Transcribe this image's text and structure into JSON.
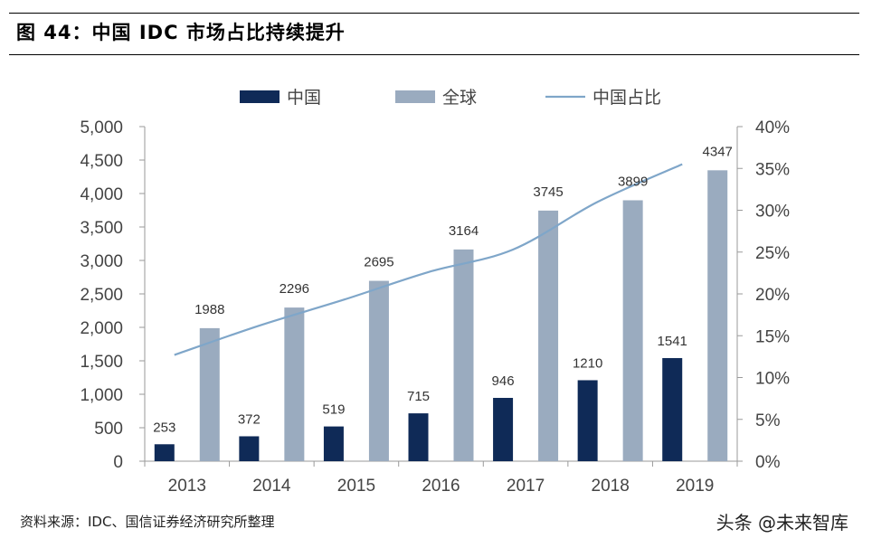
{
  "header": {
    "title": "图 44：中国 IDC 市场占比持续提升"
  },
  "footer": {
    "source": "资料来源：IDC、国信证券经济研究所整理",
    "watermark": "头条 @未来智库"
  },
  "colors": {
    "china": "#0f2a57",
    "global": "#9aabbf",
    "share": "#7fa6c9"
  },
  "chart_data": {
    "type": "bar",
    "categories": [
      "2013",
      "2014",
      "2015",
      "2016",
      "2017",
      "2018",
      "2019"
    ],
    "series": [
      {
        "name": "中国",
        "type": "bar",
        "axis": "left",
        "values": [
          253,
          372,
          519,
          715,
          946,
          1210,
          1541
        ]
      },
      {
        "name": "全球",
        "type": "bar",
        "axis": "left",
        "values": [
          1988,
          2296,
          2695,
          3164,
          3745,
          3899,
          4347
        ]
      },
      {
        "name": "中国占比",
        "type": "line",
        "axis": "right",
        "values": [
          12.7,
          16.2,
          19.3,
          22.6,
          25.3,
          31.0,
          35.5
        ]
      }
    ],
    "ylim": [
      0,
      5000
    ],
    "yticks": [
      "0",
      "500",
      "1,000",
      "1,500",
      "2,000",
      "2,500",
      "3,000",
      "3,500",
      "4,000",
      "4,500",
      "5,000"
    ],
    "y2lim": [
      0,
      40
    ],
    "y2ticks": [
      "0%",
      "5%",
      "10%",
      "15%",
      "20%",
      "25%",
      "30%",
      "35%",
      "40%"
    ],
    "legend": "top",
    "grid": false
  }
}
